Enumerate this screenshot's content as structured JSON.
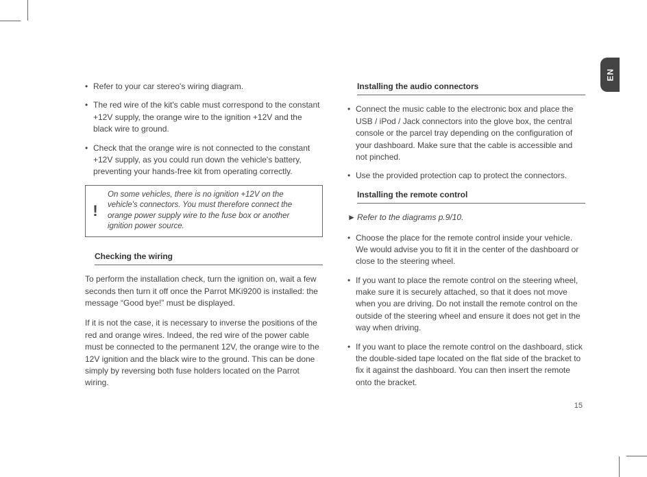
{
  "lang_tab": "EN",
  "page_number": "15",
  "left": {
    "bullets_top": [
      "Refer to your car stereo's wiring diagram.",
      "The red wire of the kit's cable must correspond to the constant +12V supply, the orange wire to the ignition +12V and the black wire to ground.",
      "Check that the orange wire is not connected to the constant +12V supply, as you could run down the vehicle's battery, preventing your hands-free kit from operating correctly."
    ],
    "note_symbol": "!",
    "note": "On some vehicles, there is no ignition +12V on the vehicle's connectors. You must therefore connect the orange power supply wire to the fuse box or another ignition power source.",
    "section1_title": "Checking the wiring",
    "para1": "To perform the installation check, turn the ignition on, wait a few seconds then turn it off once the Parrot MKi9200 is installed: the message “Good bye!” must be displayed.",
    "para2": "If it is not the case, it is necessary to inverse the positions of the red and orange wires. Indeed, the red wire of the power cable must be connected to the permanent 12V, the orange wire to the 12V ignition and the black wire to the ground. This can be done simply by reversing both fuse holders located on the Parrot wiring."
  },
  "right": {
    "section1_title": "Installing the audio connectors",
    "bullets1": [
      "Connect the music cable to the electronic box and place the USB / iPod / Jack connectors into the glove box, the central console or the parcel tray depending on the configuration of your dashboard. Make sure that the cable is accessible and not pinched.",
      "Use the provided protection cap to protect the connectors."
    ],
    "section2_title": "Installing the remote control",
    "arrow_symbol": "►",
    "arrow_text": "Refer to the diagrams p.9/10.",
    "bullets2": [
      "Choose the place for the remote control inside your vehicle. We would advise you to fit it in the center of the dashboard or close to the steering wheel.",
      "If you want to place the remote control on the steering wheel, make sure it is securely attached, so that it does not move when you are driving. Do not install the remote control on the outside of the steering wheel and ensure it does not get in the way when driving.",
      "If you want to place the remote control on the dashboard, stick the double-sided tape located on the flat side of the bracket to fix it against the dashboard. You can then insert the remote onto the bracket."
    ]
  },
  "colors": {
    "text": "#444444",
    "rule": "#666666",
    "tab_bg": "#444444",
    "tab_fg": "#ffffff",
    "page_bg": "#ffffff"
  }
}
